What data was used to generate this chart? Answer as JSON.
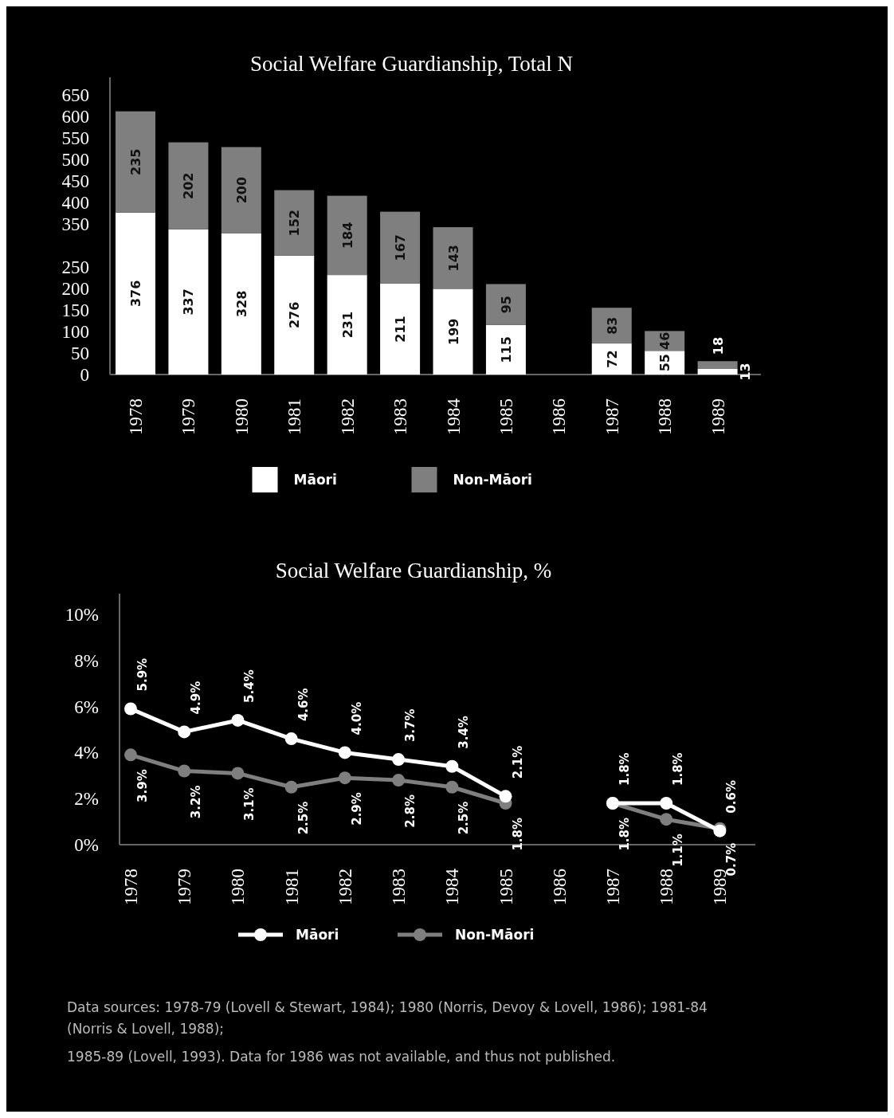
{
  "chart_data": [
    {
      "type": "bar",
      "title": "Social Welfare Guardianship, Total N",
      "categories": [
        "1978",
        "1979",
        "1980",
        "1981",
        "1982",
        "1983",
        "1984",
        "1985",
        "1986",
        "1987",
        "1988",
        "1989"
      ],
      "series": [
        {
          "name": "Māori",
          "color": "#ffffff",
          "values": [
            376,
            337,
            328,
            276,
            231,
            211,
            199,
            115,
            null,
            72,
            55,
            13
          ]
        },
        {
          "name": "Non-Māori",
          "color": "#7f7f7f",
          "values": [
            235,
            202,
            200,
            152,
            184,
            167,
            143,
            95,
            null,
            83,
            46,
            18
          ]
        }
      ],
      "stacked": true,
      "data_labels": true,
      "legend": "bottom",
      "ylim": [
        0,
        690
      ],
      "yticks": [
        0,
        50,
        100,
        150,
        200,
        250,
        350,
        400,
        450,
        500,
        550,
        600,
        650
      ]
    },
    {
      "type": "line",
      "title": "Social Welfare Guardianship, %",
      "categories": [
        "1978",
        "1979",
        "1980",
        "1981",
        "1982",
        "1983",
        "1984",
        "1985",
        "1986",
        "1987",
        "1988",
        "1989"
      ],
      "series": [
        {
          "name": "Māori",
          "color": "#ffffff",
          "values": [
            5.9,
            4.9,
            5.4,
            4.6,
            4.0,
            3.7,
            3.4,
            2.1,
            null,
            1.8,
            1.8,
            0.6
          ],
          "value_labels": [
            "5.9%",
            "4.9%",
            "5.4%",
            "4.6%",
            "4.0%",
            "3.7%",
            "3.4%",
            "2.1%",
            null,
            "1.8%",
            "1.8%",
            "0.6%"
          ]
        },
        {
          "name": "Non-Māori",
          "color": "#7f7f7f",
          "values": [
            3.9,
            3.2,
            3.1,
            2.5,
            2.9,
            2.8,
            2.5,
            1.8,
            null,
            1.8,
            1.1,
            0.7
          ],
          "value_labels": [
            "3.9%",
            "3.2%",
            "3.1%",
            "2.5%",
            "2.9%",
            "2.8%",
            "2.5%",
            "1.8%",
            null,
            "1.8%",
            "1.1%",
            "0.7%"
          ]
        }
      ],
      "marker": "circle",
      "legend": "bottom",
      "ylim": [
        0,
        10.9
      ],
      "yticks": [
        {
          "value": 0,
          "label": "0%"
        },
        {
          "value": 2,
          "label": "2%"
        },
        {
          "value": 4,
          "label": "4%"
        },
        {
          "value": 6,
          "label": "6%"
        },
        {
          "value": 8,
          "label": "8%"
        },
        {
          "value": 10,
          "label": "10%"
        }
      ],
      "annotations": [
        "Data sources: 1978-79 (Lovell & Stewart, 1984); 1980 (Norris, Devoy & Lovell, 1986); 1981-84 (Norris & Lovell, 1988);",
        "1985-89 (Lovell, 1993). Data for 1986 was not available, and thus not published."
      ]
    }
  ]
}
